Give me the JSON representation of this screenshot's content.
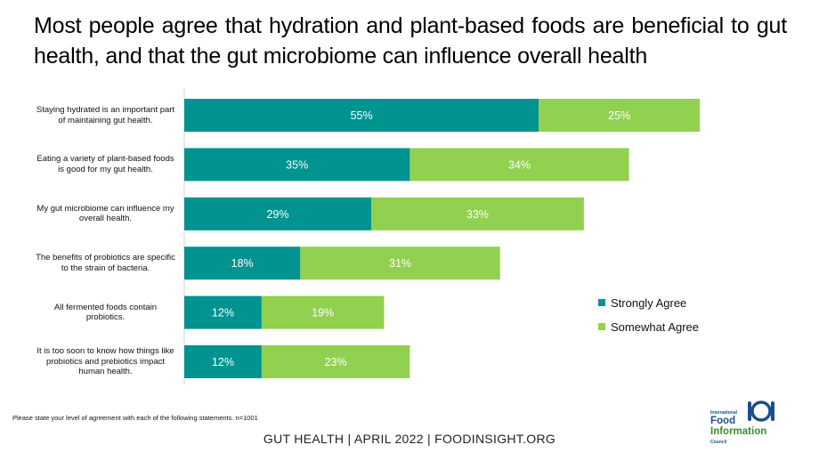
{
  "title": "Most people agree that hydration and plant-based foods are beneficial to gut health, and that the gut microbiome can influence overall health",
  "chart_data": {
    "type": "bar",
    "orientation": "horizontal",
    "stacked": true,
    "categories": [
      "Staying hydrated is an important part of maintaining gut health.",
      "Eating a variety of plant-based foods is good for my gut health.",
      "My gut microbiome can influence my overall health.",
      "The benefits of probiotics are specific to the strain of bacteria.",
      "All fermented foods contain probiotics.",
      "It is too soon to know how things like probiotics and prebiotics impact human health."
    ],
    "series": [
      {
        "name": "Strongly Agree",
        "values": [
          55,
          35,
          29,
          18,
          12,
          12
        ],
        "color": "#009390"
      },
      {
        "name": "Somewhat Agree",
        "values": [
          25,
          34,
          33,
          31,
          19,
          23
        ],
        "color": "#92d050"
      }
    ],
    "data_labels": [
      [
        "55%",
        "35%",
        "29%",
        "18%",
        "12%",
        "12%"
      ],
      [
        "25%",
        "34%",
        "33%",
        "31%",
        "19%",
        "23%"
      ]
    ],
    "xlim": [
      0,
      100
    ],
    "grid": false,
    "legend_position": "right"
  },
  "footnote": "Please state your level of agreement  with each of the following statements.  n=1001",
  "footer": "GUT HEALTH | APRIL 2022 | FOODINSIGHT.ORG",
  "logo": {
    "line1": "International",
    "line2": "Food",
    "line3": "Information",
    "line4": "Council"
  }
}
